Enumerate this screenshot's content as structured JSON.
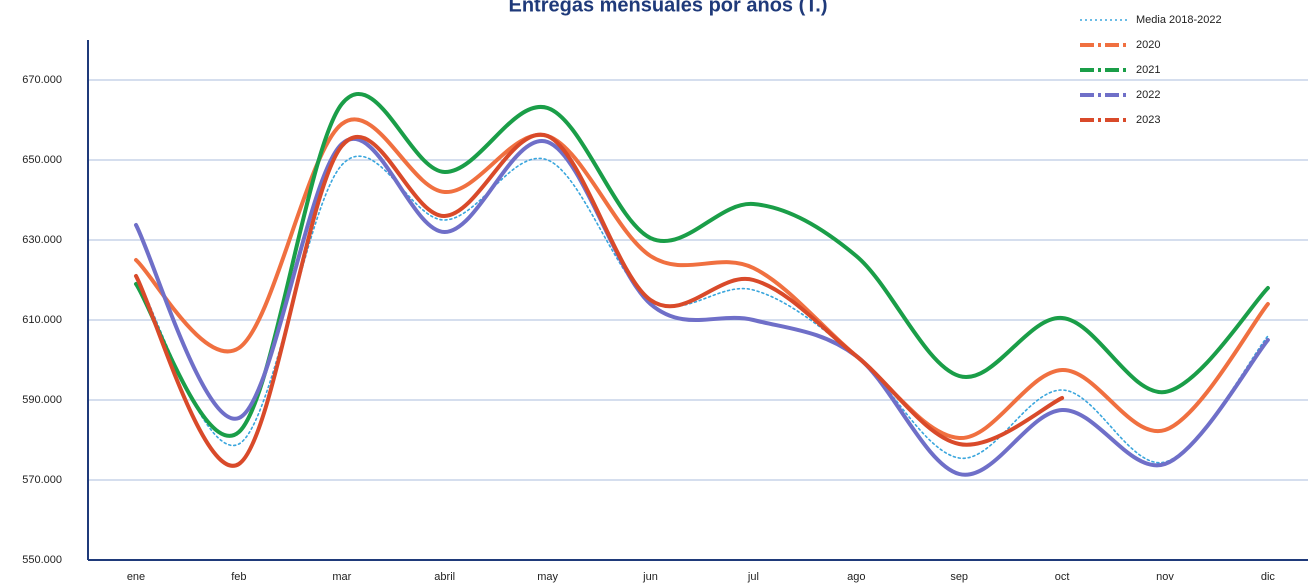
{
  "chart_data": {
    "type": "line",
    "title": "Entregas mensuales por años (T.)",
    "categories": [
      "ene",
      "feb",
      "mar",
      "abril",
      "may",
      "jun",
      "jul",
      "ago",
      "sep",
      "oct",
      "nov",
      "dic"
    ],
    "series": [
      {
        "name": "Media 2018-2022",
        "color": "#3aa6dd",
        "style": "dotted",
        "values": [
          621000,
          579000,
          648750,
          635000,
          650000,
          615000,
          617500,
          601000,
          575500,
          592500,
          574500,
          606000
        ]
      },
      {
        "name": "2020",
        "color": "#f07040",
        "style": "solid",
        "values": [
          625000,
          603000,
          659000,
          642000,
          656000,
          626000,
          623000,
          601000,
          580500,
          597500,
          582500,
          614000
        ]
      },
      {
        "name": "2021",
        "color": "#1a9e48",
        "style": "solid",
        "values": [
          619000,
          582000,
          664000,
          647000,
          663000,
          630500,
          639000,
          626000,
          596000,
          610500,
          592000,
          618000
        ]
      },
      {
        "name": "2022",
        "color": "#6f6fc8",
        "style": "solid",
        "values": [
          633750,
          585500,
          654000,
          632000,
          654500,
          614000,
          610000,
          601000,
          571500,
          587500,
          574000,
          605000
        ]
      },
      {
        "name": "2023",
        "color": "#d94a2a",
        "style": "solid",
        "values": [
          621000,
          574000,
          653500,
          636000,
          656000,
          615000,
          620000,
          601000,
          579000,
          590500,
          null,
          null
        ]
      }
    ],
    "ylim": [
      550000,
      680000
    ],
    "yticks": [
      {
        "value": 550000,
        "label": "550.000"
      },
      {
        "value": 570000,
        "label": "570.000"
      },
      {
        "value": 590000,
        "label": "590.000"
      },
      {
        "value": 610000,
        "label": "610.000"
      },
      {
        "value": 630000,
        "label": "630.000"
      },
      {
        "value": 650000,
        "label": "650.000"
      },
      {
        "value": 670000,
        "label": "670.000"
      }
    ],
    "grid": true,
    "legend": "top-right"
  }
}
